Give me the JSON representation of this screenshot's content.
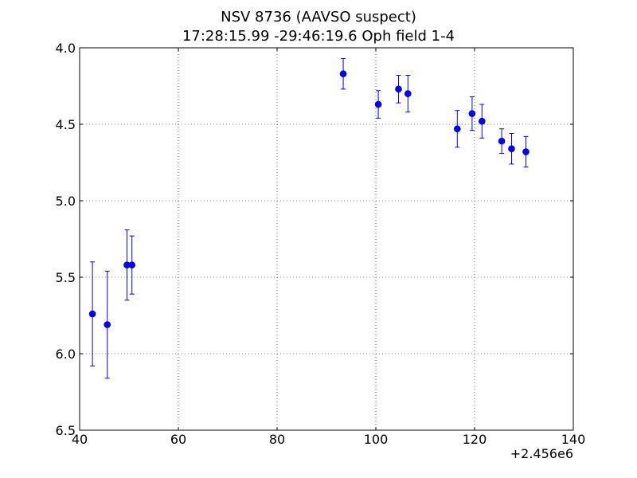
{
  "chart_data": {
    "type": "scatter",
    "title_lines": [
      "NSV 8736 (AAVSO suspect)",
      "17:28:15.99 -29:46:19.6 Oph field 1-4"
    ],
    "x_offset_label": "+2.456e6",
    "xlim": [
      40,
      140
    ],
    "ylim": [
      6.5,
      4.0
    ],
    "y_inverted": true,
    "x_ticks": [
      40,
      60,
      80,
      100,
      120,
      140
    ],
    "x_tick_labels": [
      "40",
      "60",
      "80",
      "100",
      "120",
      "140"
    ],
    "y_ticks": [
      4.0,
      4.5,
      5.0,
      5.5,
      6.0,
      6.5
    ],
    "y_tick_labels": [
      "4.0",
      "4.5",
      "5.0",
      "5.5",
      "6.0",
      "6.5"
    ],
    "grid": true,
    "marker_color": "#0000ff",
    "points": [
      {
        "x": 42.6,
        "y": 5.74,
        "err": 0.34
      },
      {
        "x": 45.6,
        "y": 5.81,
        "err": 0.35
      },
      {
        "x": 49.6,
        "y": 5.42,
        "err": 0.23
      },
      {
        "x": 50.6,
        "y": 5.42,
        "err": 0.19
      },
      {
        "x": 93.4,
        "y": 4.17,
        "err": 0.1
      },
      {
        "x": 100.5,
        "y": 4.37,
        "err": 0.09
      },
      {
        "x": 104.6,
        "y": 4.27,
        "err": 0.09
      },
      {
        "x": 106.5,
        "y": 4.3,
        "err": 0.12
      },
      {
        "x": 116.5,
        "y": 4.53,
        "err": 0.12
      },
      {
        "x": 119.5,
        "y": 4.43,
        "err": 0.11
      },
      {
        "x": 121.5,
        "y": 4.48,
        "err": 0.11
      },
      {
        "x": 125.5,
        "y": 4.61,
        "err": 0.08
      },
      {
        "x": 127.5,
        "y": 4.66,
        "err": 0.1
      },
      {
        "x": 130.4,
        "y": 4.68,
        "err": 0.1
      }
    ]
  }
}
